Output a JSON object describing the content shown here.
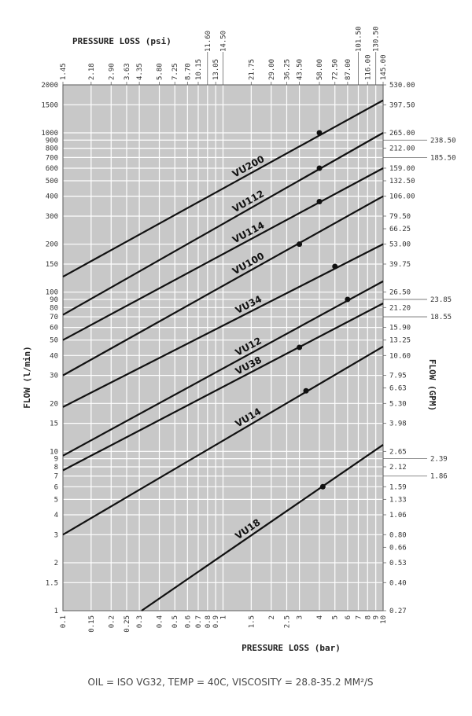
{
  "chart_data": {
    "type": "line",
    "x_label": "PRESSURE LOSS (bar)",
    "x2_label": "PRESSURE LOSS (psi)",
    "y_label": "FLOW (l/min)",
    "y2_label": "FLOW (GPM)",
    "note": "OIL = ISO VG32, TEMP = 40C, VISCOSITY = 28.8-35.2 MM²/S",
    "log_x": true,
    "log_y": true,
    "grid": true,
    "background": "#c8c8c8",
    "color": "#111111",
    "xlim": [
      0.1,
      10
    ],
    "xticks": [
      0.1,
      0.15,
      0.2,
      0.25,
      0.3,
      0.4,
      0.5,
      0.6,
      0.7,
      0.8,
      0.9,
      1,
      1.5,
      2,
      2.5,
      3,
      4,
      5,
      6,
      7,
      8,
      9,
      10
    ],
    "x2lim": [
      1.45,
      145
    ],
    "x2ticks": [
      1.45,
      {
        "value": 2.175,
        "label": "2.18"
      },
      {
        "value": 2.9,
        "label": "2.90"
      },
      {
        "value": 3.625,
        "label": "3.63"
      },
      4.35,
      {
        "value": 5.8,
        "label": "5.80"
      },
      7.25,
      {
        "value": 8.7,
        "label": "8.70"
      },
      10.15,
      {
        "value": 11.6,
        "label": "11.60"
      },
      13.05,
      {
        "value": 14.5,
        "label": "14.50"
      },
      21.75,
      {
        "value": 29,
        "label": "29.00"
      },
      36.25,
      {
        "value": 43.5,
        "label": "43.50"
      },
      {
        "value": 58,
        "label": "58.00"
      },
      {
        "value": 72.5,
        "label": "72.50"
      },
      {
        "value": 87,
        "label": "87.00"
      },
      {
        "value": 101.5,
        "label": "101.50"
      },
      {
        "value": 116,
        "label": "116.00"
      },
      {
        "value": 130.5,
        "label": "130.50"
      },
      {
        "value": 145,
        "label": "145.00"
      }
    ],
    "ylim": [
      1,
      2000
    ],
    "yticks": [
      1,
      1.5,
      2,
      3,
      4,
      5,
      6,
      7,
      8,
      9,
      10,
      15,
      20,
      30,
      40,
      50,
      60,
      70,
      80,
      90,
      100,
      150,
      200,
      300,
      400,
      500,
      600,
      700,
      800,
      900,
      1000,
      1500,
      2000
    ],
    "y2lim": [
      0.265,
      530
    ],
    "y2ticks": [
      {
        "value": 0.265,
        "label": "0.27"
      },
      {
        "value": 0.3975,
        "label": "0.40"
      },
      0.53,
      {
        "value": 0.6625,
        "label": "0.66"
      },
      {
        "value": 0.795,
        "label": "0.80"
      },
      1.06,
      {
        "value": 1.325,
        "label": "1.33"
      },
      1.59,
      {
        "value": 1.855,
        "label": "1.86"
      },
      2.12,
      {
        "value": 2.385,
        "label": "2.39"
      },
      2.65,
      {
        "value": 3.975,
        "label": "3.98"
      },
      {
        "value": 5.3,
        "label": "5.30"
      },
      {
        "value": 6.625,
        "label": "6.63"
      },
      7.95,
      {
        "value": 10.6,
        "label": "10.60"
      },
      13.25,
      {
        "value": 15.9,
        "label": "15.90"
      },
      18.55,
      {
        "value": 21.2,
        "label": "21.20"
      },
      23.85,
      {
        "value": 26.5,
        "label": "26.50"
      },
      39.75,
      {
        "value": 53,
        "label": "53.00"
      },
      66.25,
      {
        "value": 79.5,
        "label": "79.50"
      },
      {
        "value": 106,
        "label": "106.00"
      },
      {
        "value": 132.5,
        "label": "132.50"
      },
      {
        "value": 159,
        "label": "159.00"
      },
      {
        "value": 185.5,
        "label": "185.50"
      },
      {
        "value": 212,
        "label": "212.00"
      },
      {
        "value": 238.5,
        "label": "238.50"
      },
      {
        "value": 265,
        "label": "265.00"
      },
      {
        "value": 397.5,
        "label": "397.50"
      },
      {
        "value": 530,
        "label": "530.00"
      }
    ],
    "series": [
      {
        "name": "VU200",
        "x": [
          0.1,
          10
        ],
        "values": [
          125,
          1600
        ],
        "dot": {
          "x": 4,
          "value": 1000
        }
      },
      {
        "name": "VU112",
        "x": [
          0.1,
          10
        ],
        "values": [
          72,
          1000
        ],
        "dot": {
          "x": 4,
          "value": 600
        }
      },
      {
        "name": "VU114",
        "x": [
          0.1,
          10
        ],
        "values": [
          50,
          600
        ],
        "dot": {
          "x": 4,
          "value": 370
        }
      },
      {
        "name": "VU100",
        "x": [
          0.1,
          10
        ],
        "values": [
          30,
          400
        ],
        "dot": {
          "x": 3,
          "value": 200
        }
      },
      {
        "name": "VU34",
        "x": [
          0.1,
          10
        ],
        "values": [
          19,
          200
        ],
        "dot": {
          "x": 5,
          "value": 145
        }
      },
      {
        "name": "VU12",
        "x": [
          0.1,
          10
        ],
        "values": [
          9.4,
          117
        ],
        "dot": {
          "x": 6,
          "value": 90
        }
      },
      {
        "name": "VU38",
        "x": [
          0.1,
          10
        ],
        "values": [
          7.6,
          85
        ],
        "dot": {
          "x": 3,
          "value": 45
        }
      },
      {
        "name": "VU14",
        "x": [
          0.1,
          10
        ],
        "values": [
          3,
          45.5
        ],
        "dot": {
          "x": 3.3,
          "value": 24
        }
      },
      {
        "name": "VU18",
        "x": [
          0.31,
          10
        ],
        "values": [
          1,
          11
        ],
        "dot": {
          "x": 4.2,
          "value": 6
        }
      }
    ]
  }
}
